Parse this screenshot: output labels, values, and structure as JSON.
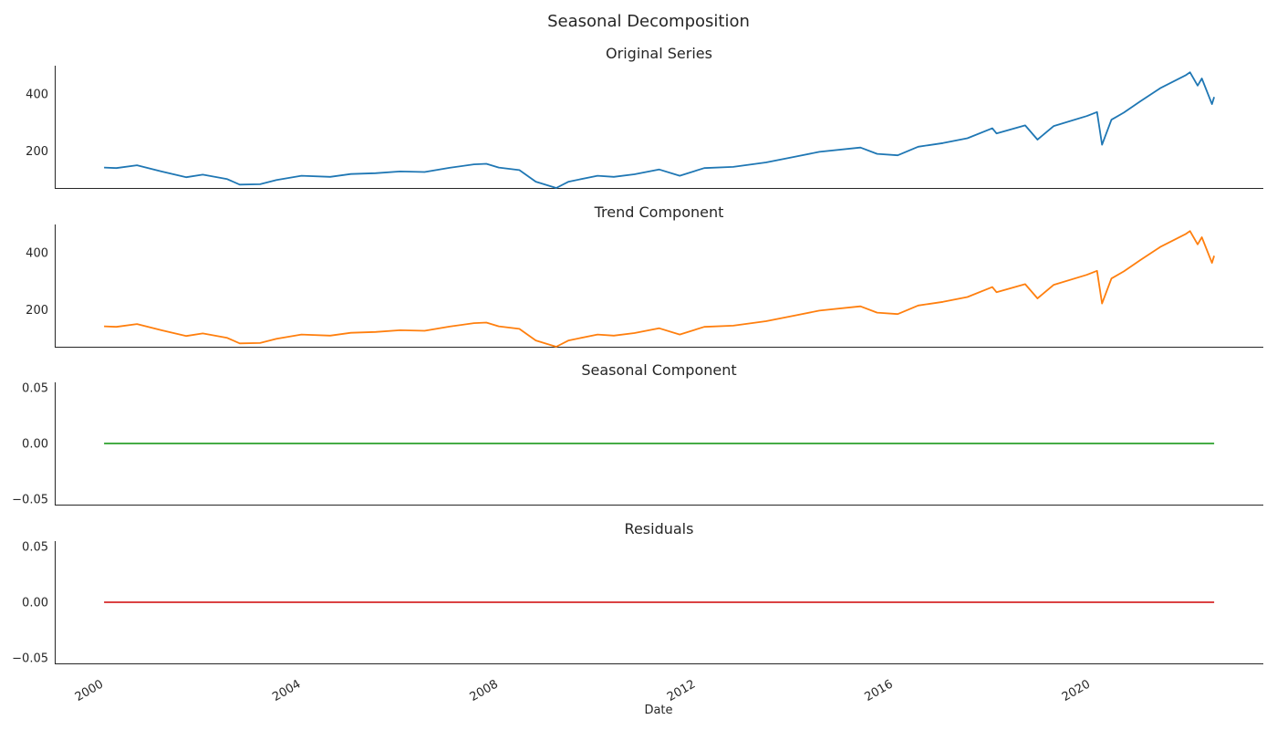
{
  "chart_data": {
    "type": "line",
    "title": "Seasonal Decomposition",
    "xlabel": "Date",
    "x_ticks": [
      "2000",
      "2004",
      "2008",
      "2012",
      "2016",
      "2020"
    ],
    "x_range": [
      "1999-01-01",
      "2023-06-30"
    ],
    "panels": [
      {
        "title": "Original Series",
        "color": "#1f77b4",
        "ylim": [
          70,
          500
        ],
        "yticks": [
          {
            "v": 200,
            "label": "200"
          },
          {
            "v": 400,
            "label": "400"
          }
        ],
        "points": [
          [
            "2000-01-01",
            142
          ],
          [
            "2000-04-01",
            140
          ],
          [
            "2000-09-01",
            150
          ],
          [
            "2001-03-01",
            128
          ],
          [
            "2001-09-01",
            108
          ],
          [
            "2002-01-01",
            117
          ],
          [
            "2002-07-01",
            101
          ],
          [
            "2002-10-01",
            82
          ],
          [
            "2003-03-01",
            83
          ],
          [
            "2003-07-01",
            98
          ],
          [
            "2004-01-01",
            113
          ],
          [
            "2004-08-01",
            109
          ],
          [
            "2005-01-01",
            119
          ],
          [
            "2005-07-01",
            122
          ],
          [
            "2006-01-01",
            128
          ],
          [
            "2006-07-01",
            126
          ],
          [
            "2007-01-01",
            141
          ],
          [
            "2007-07-01",
            153
          ],
          [
            "2007-10-01",
            155
          ],
          [
            "2008-01-01",
            142
          ],
          [
            "2008-06-01",
            133
          ],
          [
            "2008-10-01",
            92
          ],
          [
            "2009-03-01",
            70
          ],
          [
            "2009-06-01",
            92
          ],
          [
            "2010-01-01",
            113
          ],
          [
            "2010-05-01",
            109
          ],
          [
            "2010-10-01",
            118
          ],
          [
            "2011-04-01",
            135
          ],
          [
            "2011-09-01",
            113
          ],
          [
            "2012-03-01",
            140
          ],
          [
            "2012-10-01",
            144
          ],
          [
            "2013-06-01",
            160
          ],
          [
            "2014-01-01",
            180
          ],
          [
            "2014-07-01",
            197
          ],
          [
            "2015-05-01",
            212
          ],
          [
            "2015-09-01",
            190
          ],
          [
            "2016-02-01",
            185
          ],
          [
            "2016-07-01",
            215
          ],
          [
            "2017-01-01",
            228
          ],
          [
            "2017-07-01",
            245
          ],
          [
            "2018-01-01",
            280
          ],
          [
            "2018-02-01",
            262
          ],
          [
            "2018-09-01",
            290
          ],
          [
            "2018-12-01",
            240
          ],
          [
            "2019-04-01",
            288
          ],
          [
            "2019-12-01",
            323
          ],
          [
            "2020-02-15",
            337
          ],
          [
            "2020-03-23",
            222
          ],
          [
            "2020-06-01",
            310
          ],
          [
            "2020-09-01",
            335
          ],
          [
            "2021-01-01",
            375
          ],
          [
            "2021-06-01",
            422
          ],
          [
            "2021-12-01",
            466
          ],
          [
            "2022-01-03",
            477
          ],
          [
            "2022-03-01",
            430
          ],
          [
            "2022-04-01",
            455
          ],
          [
            "2022-06-15",
            365
          ],
          [
            "2022-07-01",
            390
          ]
        ]
      },
      {
        "title": "Trend Component",
        "color": "#ff7f0e",
        "ylim": [
          70,
          500
        ],
        "yticks": [
          {
            "v": 200,
            "label": "200"
          },
          {
            "v": 400,
            "label": "400"
          }
        ],
        "points": [
          [
            "2000-01-01",
            142
          ],
          [
            "2000-04-01",
            140
          ],
          [
            "2000-09-01",
            150
          ],
          [
            "2001-03-01",
            128
          ],
          [
            "2001-09-01",
            108
          ],
          [
            "2002-01-01",
            117
          ],
          [
            "2002-07-01",
            101
          ],
          [
            "2002-10-01",
            82
          ],
          [
            "2003-03-01",
            83
          ],
          [
            "2003-07-01",
            98
          ],
          [
            "2004-01-01",
            113
          ],
          [
            "2004-08-01",
            109
          ],
          [
            "2005-01-01",
            119
          ],
          [
            "2005-07-01",
            122
          ],
          [
            "2006-01-01",
            128
          ],
          [
            "2006-07-01",
            126
          ],
          [
            "2007-01-01",
            141
          ],
          [
            "2007-07-01",
            153
          ],
          [
            "2007-10-01",
            155
          ],
          [
            "2008-01-01",
            142
          ],
          [
            "2008-06-01",
            133
          ],
          [
            "2008-10-01",
            92
          ],
          [
            "2009-03-01",
            70
          ],
          [
            "2009-06-01",
            92
          ],
          [
            "2010-01-01",
            113
          ],
          [
            "2010-05-01",
            109
          ],
          [
            "2010-10-01",
            118
          ],
          [
            "2011-04-01",
            135
          ],
          [
            "2011-09-01",
            113
          ],
          [
            "2012-03-01",
            140
          ],
          [
            "2012-10-01",
            144
          ],
          [
            "2013-06-01",
            160
          ],
          [
            "2014-01-01",
            180
          ],
          [
            "2014-07-01",
            197
          ],
          [
            "2015-05-01",
            212
          ],
          [
            "2015-09-01",
            190
          ],
          [
            "2016-02-01",
            185
          ],
          [
            "2016-07-01",
            215
          ],
          [
            "2017-01-01",
            228
          ],
          [
            "2017-07-01",
            245
          ],
          [
            "2018-01-01",
            280
          ],
          [
            "2018-02-01",
            262
          ],
          [
            "2018-09-01",
            290
          ],
          [
            "2018-12-01",
            240
          ],
          [
            "2019-04-01",
            288
          ],
          [
            "2019-12-01",
            323
          ],
          [
            "2020-02-15",
            337
          ],
          [
            "2020-03-23",
            222
          ],
          [
            "2020-06-01",
            310
          ],
          [
            "2020-09-01",
            335
          ],
          [
            "2021-01-01",
            375
          ],
          [
            "2021-06-01",
            422
          ],
          [
            "2021-12-01",
            466
          ],
          [
            "2022-01-03",
            477
          ],
          [
            "2022-03-01",
            430
          ],
          [
            "2022-04-01",
            455
          ],
          [
            "2022-06-15",
            365
          ],
          [
            "2022-07-01",
            390
          ]
        ]
      },
      {
        "title": "Seasonal Component",
        "color": "#2ca02c",
        "ylim": [
          -0.055,
          0.055
        ],
        "yticks": [
          {
            "v": 0.05,
            "label": "0.05"
          },
          {
            "v": 0.0,
            "label": "0.00"
          },
          {
            "v": -0.05,
            "label": "−0.05"
          }
        ],
        "points": [
          [
            "2000-01-01",
            0.0
          ],
          [
            "2022-07-01",
            0.0
          ]
        ]
      },
      {
        "title": "Residuals",
        "color": "#d62728",
        "ylim": [
          -0.055,
          0.055
        ],
        "yticks": [
          {
            "v": 0.05,
            "label": "0.05"
          },
          {
            "v": 0.0,
            "label": "0.00"
          },
          {
            "v": -0.05,
            "label": "−0.05"
          }
        ],
        "points": [
          [
            "2000-01-01",
            0.0
          ],
          [
            "2022-07-01",
            0.0
          ]
        ]
      }
    ]
  }
}
